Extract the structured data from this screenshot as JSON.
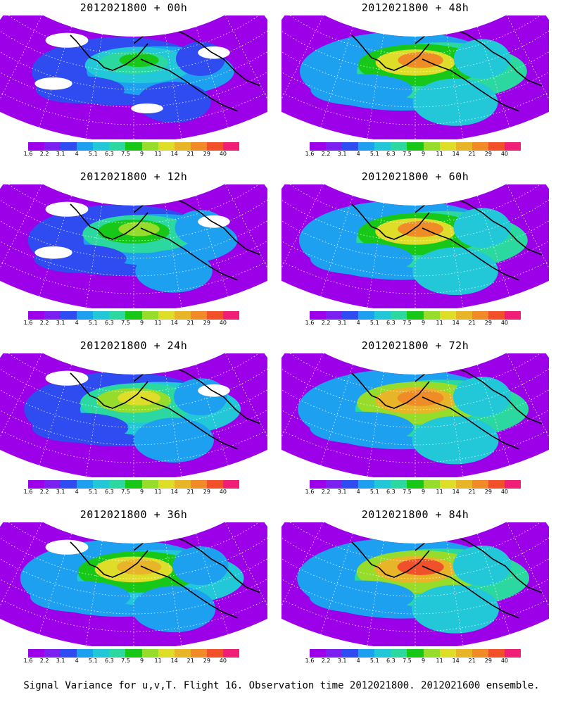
{
  "panels": [
    {
      "title": "2012021800 + 00h",
      "lead_hours": 0,
      "intensity": 0.55,
      "white_fraction": 0.35
    },
    {
      "title": "2012021800 + 12h",
      "lead_hours": 12,
      "intensity": 0.65,
      "white_fraction": 0.25
    },
    {
      "title": "2012021800 + 24h",
      "lead_hours": 24,
      "intensity": 0.75,
      "white_fraction": 0.12
    },
    {
      "title": "2012021800 + 36h",
      "lead_hours": 36,
      "intensity": 0.85,
      "white_fraction": 0.05
    },
    {
      "title": "2012021800 + 48h",
      "lead_hours": 48,
      "intensity": 0.9,
      "white_fraction": 0.0
    },
    {
      "title": "2012021800 + 60h",
      "lead_hours": 60,
      "intensity": 0.92,
      "white_fraction": 0.0
    },
    {
      "title": "2012021800 + 72h",
      "lead_hours": 72,
      "intensity": 0.95,
      "white_fraction": 0.0
    },
    {
      "title": "2012021800 + 84h",
      "lead_hours": 84,
      "intensity": 0.97,
      "white_fraction": 0.0
    }
  ],
  "colorbar": {
    "labels": [
      "1.6",
      "2.2",
      "3.1",
      "4",
      "5.1",
      "6.3",
      "7.5",
      "9",
      "11",
      "14",
      "21",
      "29",
      "40"
    ],
    "colors": [
      "#9b00e8",
      "#7a20f0",
      "#2f4cf0",
      "#1ea0f0",
      "#22c8d8",
      "#2ad8a0",
      "#18c818",
      "#96dc2a",
      "#dede2a",
      "#e8b428",
      "#f08c28",
      "#f0502a",
      "#f01e78"
    ]
  },
  "caption": "Signal Variance for u,v,T. Flight 16. Observation time 2012021800. 2012021600 ensemble."
}
